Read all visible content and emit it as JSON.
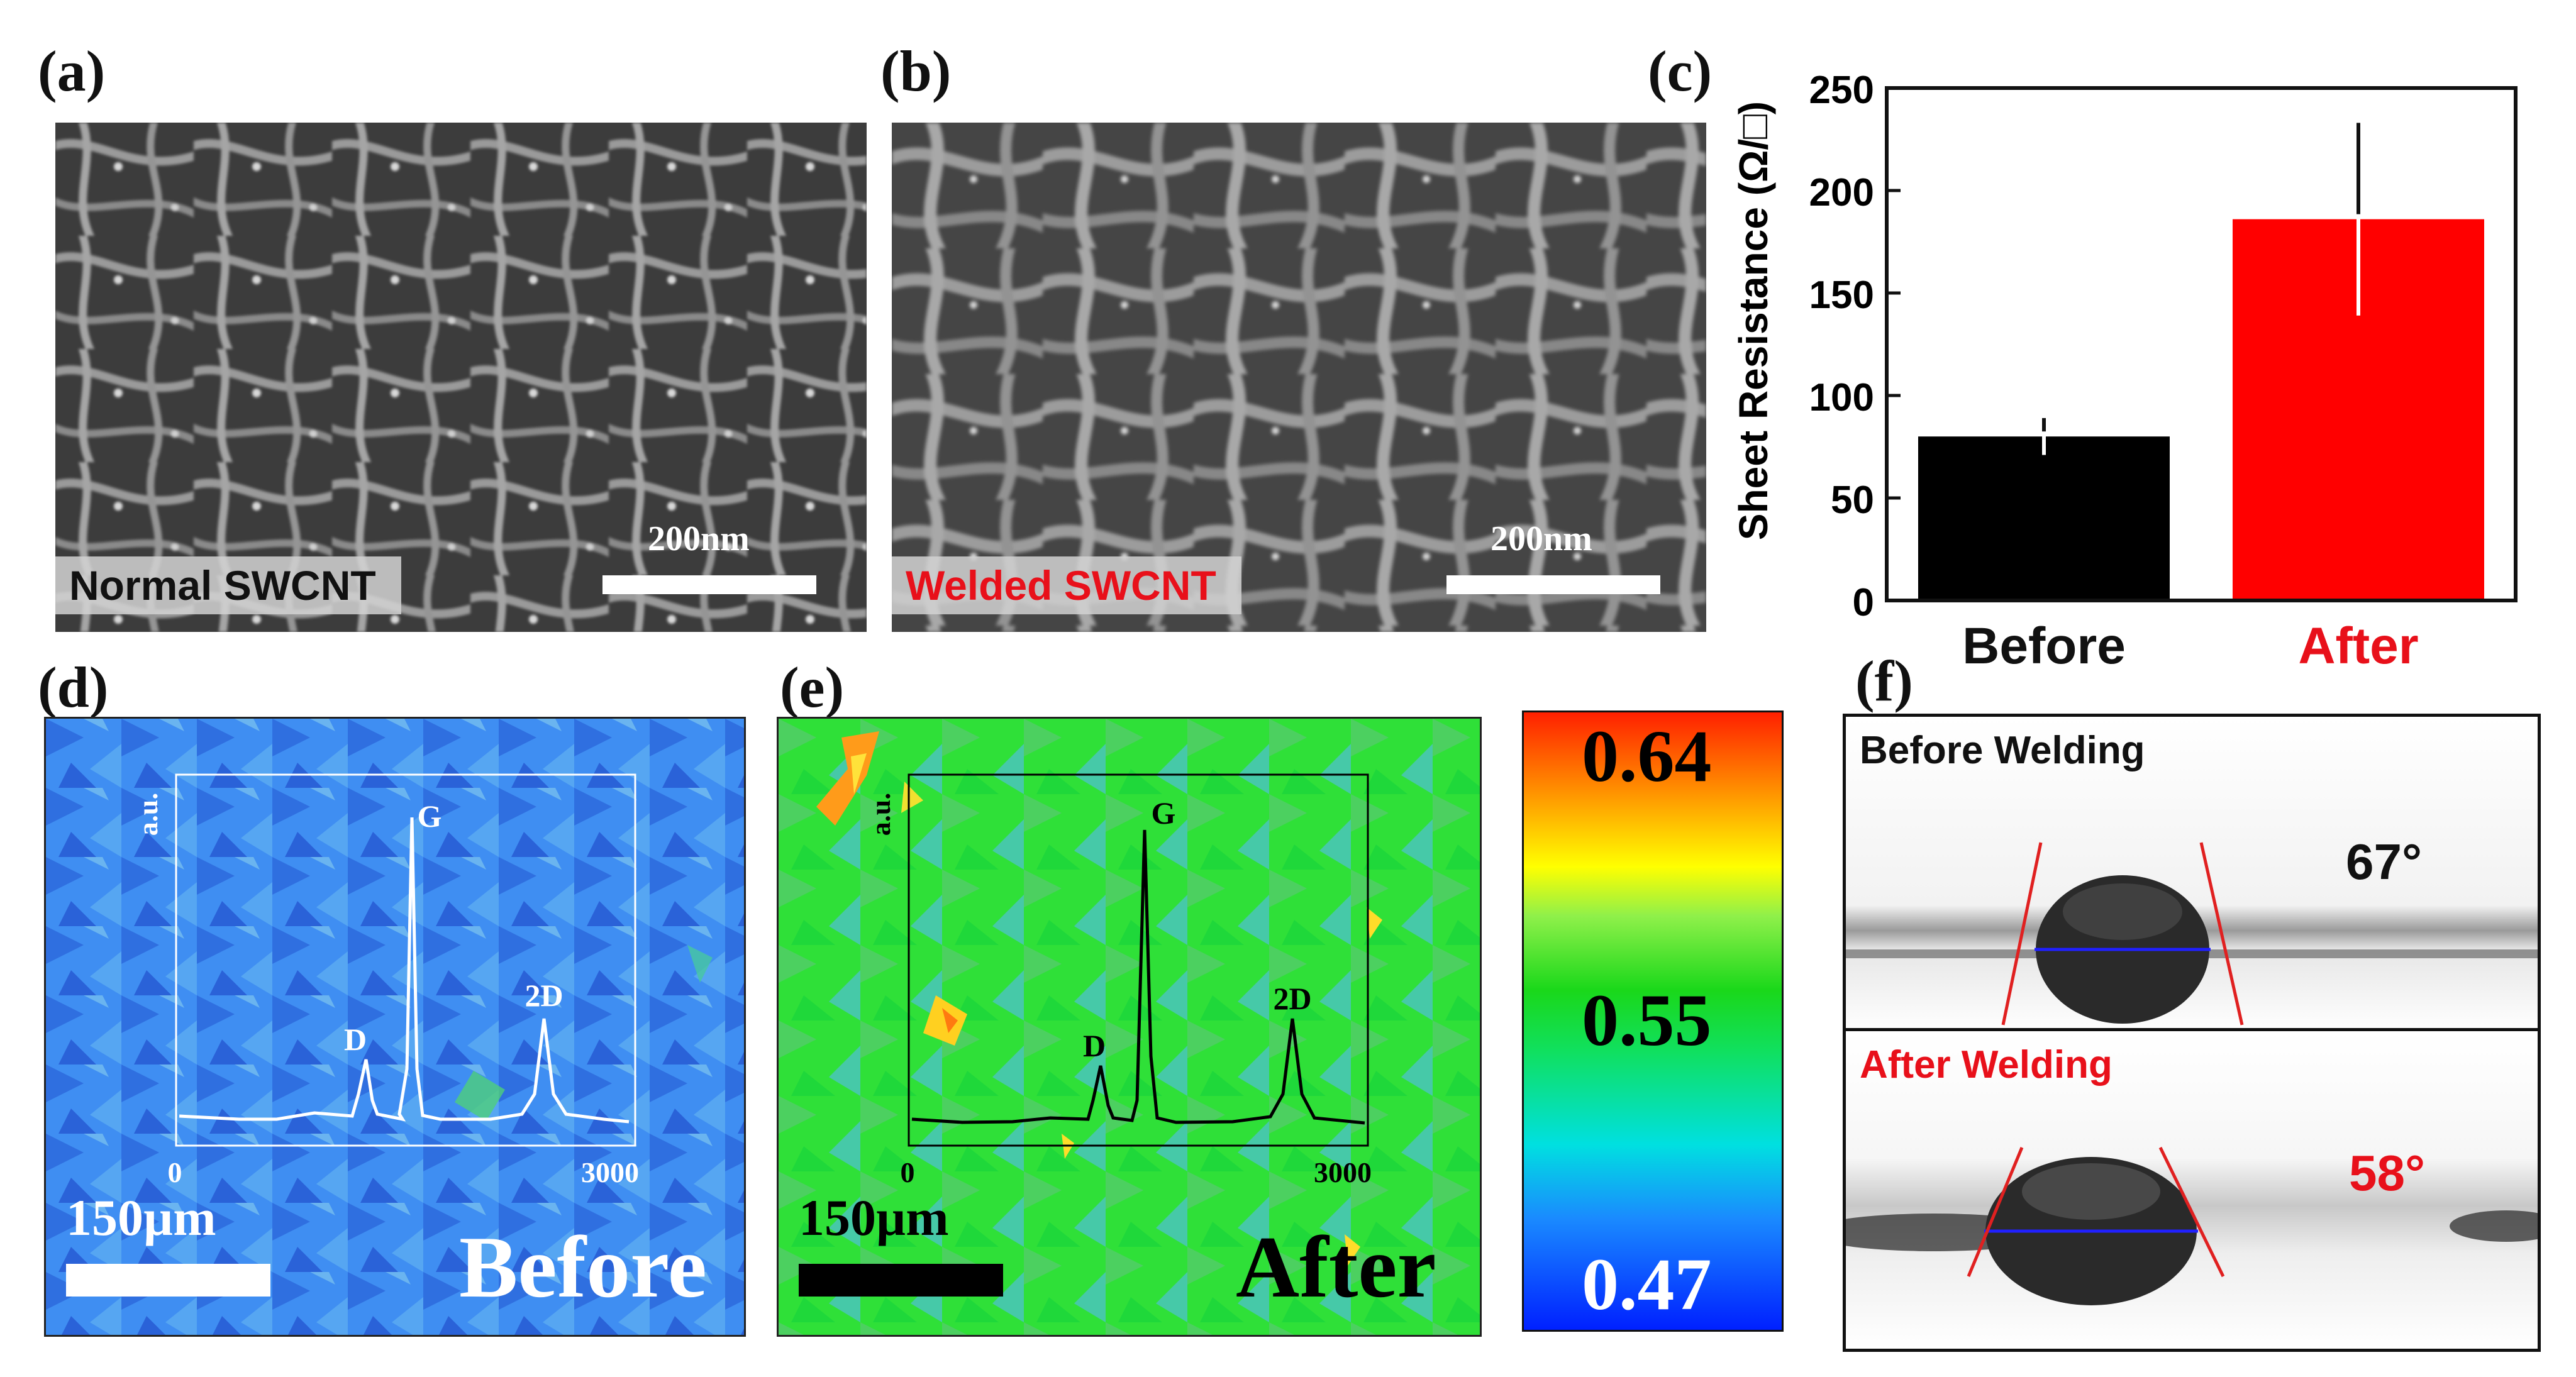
{
  "panels": {
    "a": {
      "label": "(a)",
      "caption": "Normal SWCNT",
      "scale": "200nm"
    },
    "b": {
      "label": "(b)",
      "caption": "Welded SWCNT",
      "scale": "200nm"
    },
    "c": {
      "label": "(c)"
    },
    "d": {
      "label": "(d)",
      "scale": "150µm",
      "state": "Before"
    },
    "e": {
      "label": "(e)",
      "scale": "150µm",
      "state": "After"
    },
    "f": {
      "label": "(f)",
      "before": {
        "title": "Before Welding",
        "angle": "67°"
      },
      "after": {
        "title": "After Welding",
        "angle": "58°"
      }
    }
  },
  "inset": {
    "ylabel": "a.u.",
    "xmin": "0",
    "xmax": "3000",
    "peaks": {
      "D": "D",
      "G": "G",
      "twoD": "2D"
    }
  },
  "colorbar": {
    "max": "0.64",
    "mid": "0.55",
    "min": "0.47"
  },
  "colors": {
    "before_bar": "#000000",
    "after_bar": "#ff0000",
    "welded_text": "#e8101a",
    "map_blue": "#3a8cf0",
    "map_green": "#2ee02e"
  },
  "chart_data": {
    "type": "bar",
    "categories": [
      "Before",
      "After"
    ],
    "values": [
      80,
      186
    ],
    "errors": [
      9,
      47
    ],
    "ylabel": "Sheet Resistance (Ω/□)",
    "ylim": [
      0,
      250
    ],
    "yticks": [
      "0",
      "50",
      "100",
      "150",
      "200",
      "250"
    ]
  }
}
